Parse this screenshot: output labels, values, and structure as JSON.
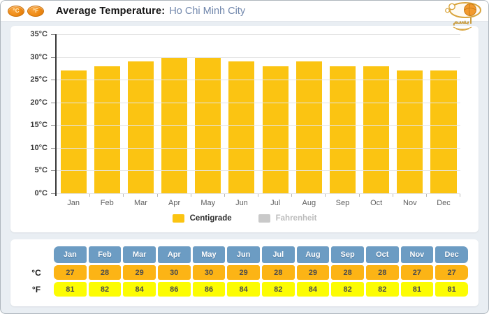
{
  "header": {
    "celsius_badge": "°C",
    "fahrenheit_badge": "°F",
    "title": "Average Temperature:",
    "city": "Ho Chi Minh City"
  },
  "logo": {
    "text": "آیسم"
  },
  "chart_data": {
    "type": "bar",
    "title": "Average Temperature: Ho Chi Minh City",
    "categories": [
      "Jan",
      "Feb",
      "Mar",
      "Apr",
      "May",
      "Jun",
      "Jul",
      "Aug",
      "Sep",
      "Oct",
      "Nov",
      "Dec"
    ],
    "series": [
      {
        "name": "Centigrade",
        "unit": "°C",
        "values": [
          27,
          28,
          29,
          30,
          30,
          29,
          28,
          29,
          28,
          28,
          27,
          27
        ],
        "color": "#FBC412",
        "visible": true
      },
      {
        "name": "Fahrenheit",
        "unit": "°F",
        "values": [
          81,
          82,
          84,
          86,
          86,
          84,
          82,
          84,
          82,
          82,
          81,
          81
        ],
        "color": "#C9C9C9",
        "visible": false
      }
    ],
    "ylim": [
      0,
      35
    ],
    "ytick_step": 5,
    "ytick_labels": [
      "0°C",
      "5°C",
      "10°C",
      "15°C",
      "20°C",
      "25°C",
      "30°C",
      "35°C"
    ],
    "grid": true,
    "legend_position": "bottom"
  },
  "table": {
    "columns": [
      "Jan",
      "Feb",
      "Mar",
      "Apr",
      "May",
      "Jun",
      "Jul",
      "Aug",
      "Sep",
      "Oct",
      "Nov",
      "Dec"
    ],
    "rows": [
      {
        "label": "°C",
        "values": [
          27,
          28,
          29,
          30,
          30,
          29,
          28,
          29,
          28,
          28,
          27,
          27
        ],
        "cell_color": "#FCB415"
      },
      {
        "label": "°F",
        "values": [
          81,
          82,
          84,
          86,
          86,
          84,
          82,
          84,
          82,
          82,
          81,
          81
        ],
        "cell_color": "#FCFC03"
      }
    ],
    "header_color": "#6C9CC3"
  },
  "colors": {
    "page_background": "#E9EEF3",
    "panel_background": "#FFFFFF",
    "bar": "#FBC412",
    "city_text": "#7187AC",
    "badge_orange": "#EE8A14",
    "gridline": "#E4E4E4"
  }
}
